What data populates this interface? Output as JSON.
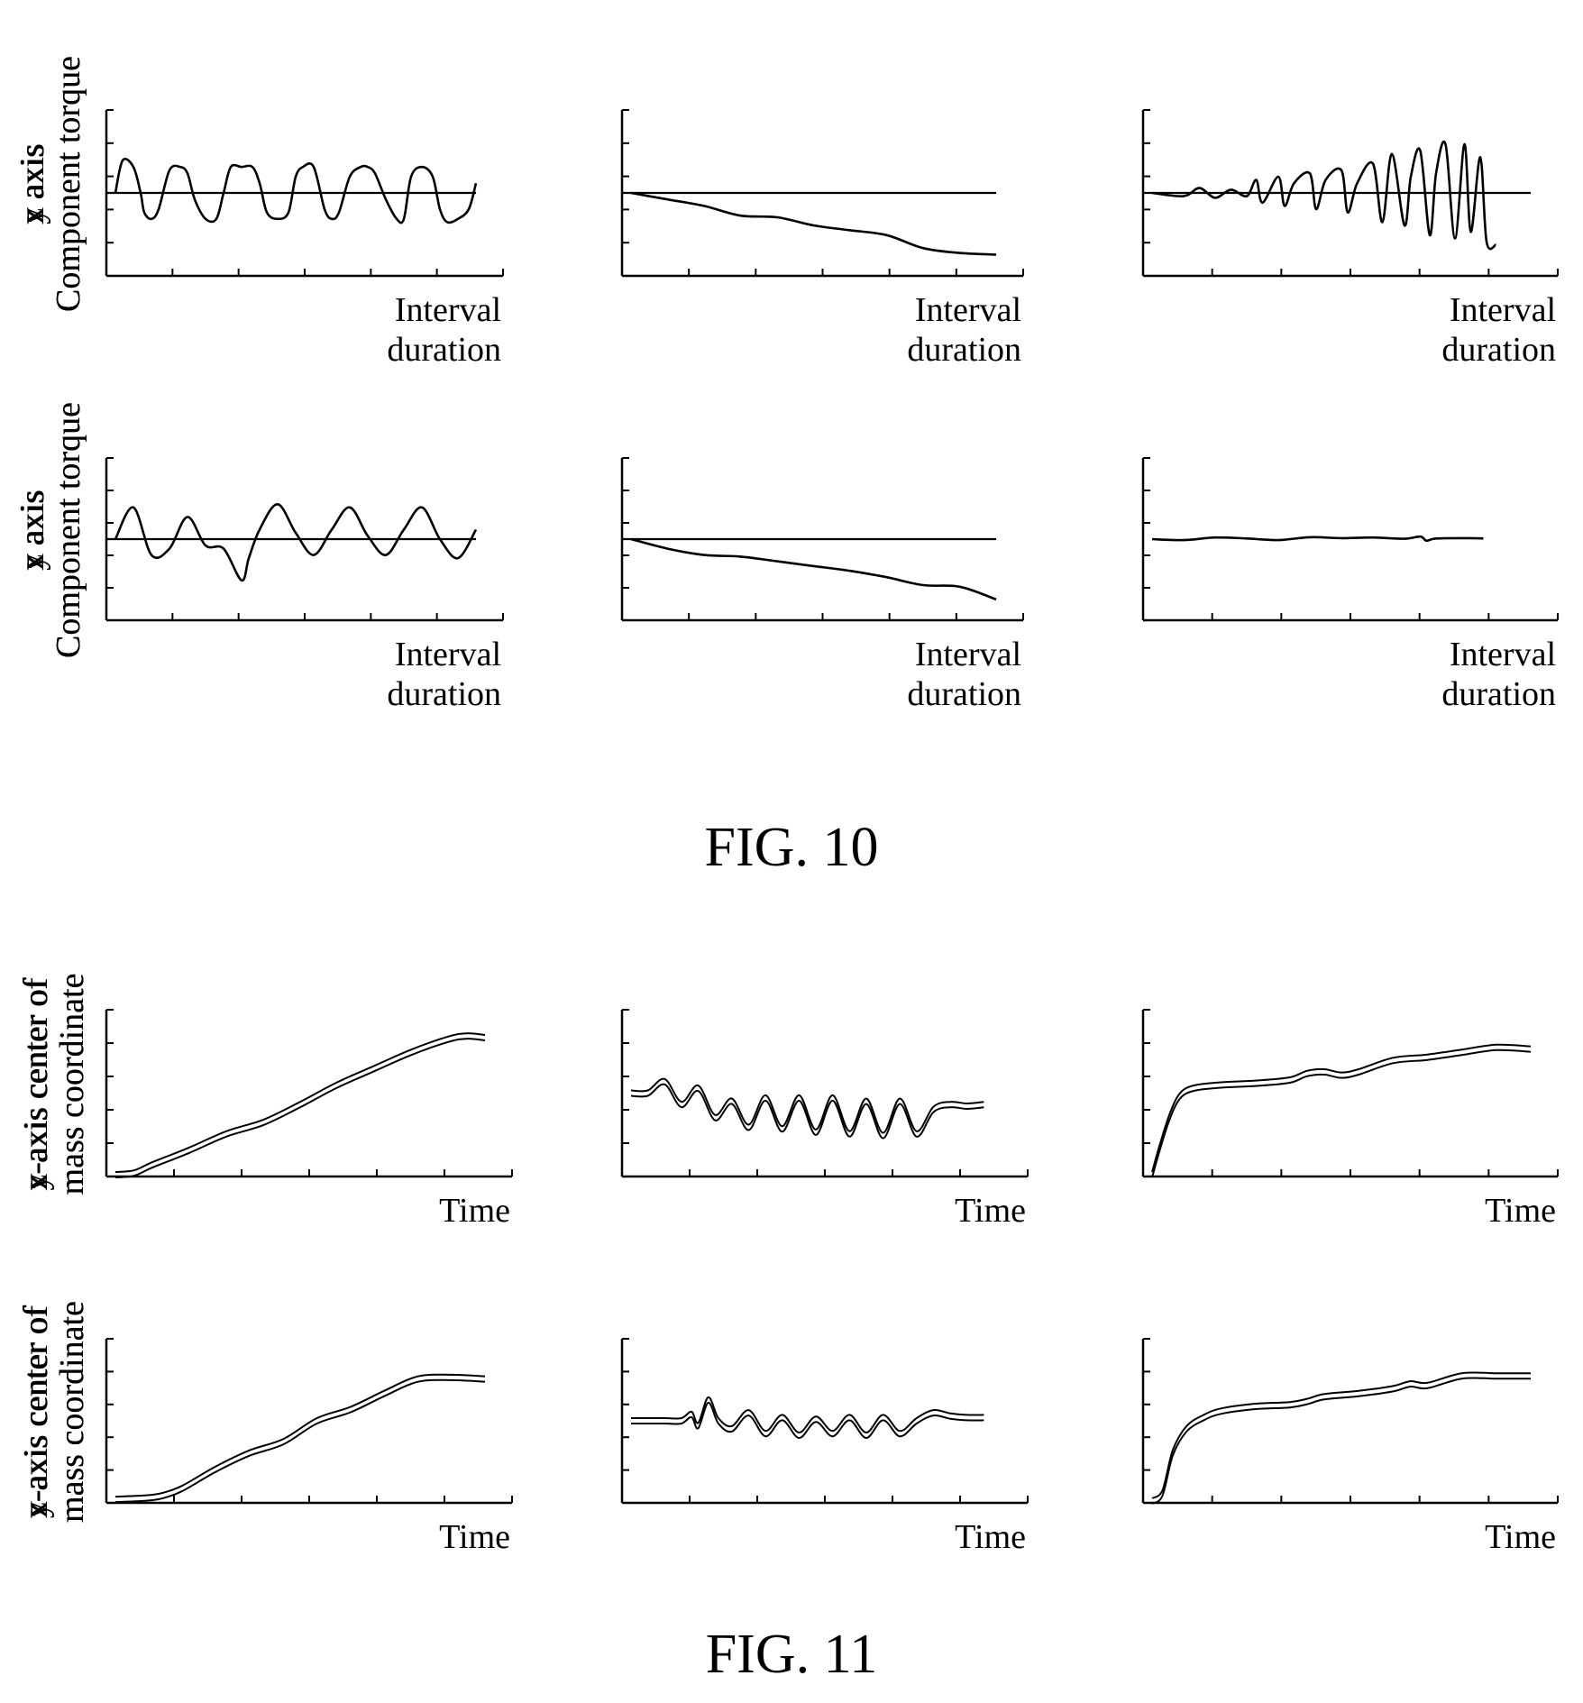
{
  "figures": [
    {
      "caption": "FIG. 10"
    },
    {
      "caption": "FIG. 11"
    }
  ],
  "chart_data": [
    {
      "type": "line",
      "figure": 0,
      "ylabel_lines": [
        "x axis",
        "Component torque"
      ],
      "xlabel_lines": [
        "Interval",
        "duration"
      ],
      "reference_line": 0,
      "xlim": [
        0,
        10
      ],
      "ylim": [
        -2.5,
        2.5
      ],
      "series": [
        {
          "x": [
            0,
            0.2,
            0.5,
            0.7,
            0.8,
            1.0,
            1.2,
            1.5,
            1.8,
            2.0,
            2.2,
            2.5,
            2.8,
            3.0,
            3.2,
            3.5,
            3.8,
            4.0,
            4.2,
            4.5,
            4.8,
            5.0,
            5.2,
            5.5,
            5.8,
            6.0,
            6.2,
            6.5,
            6.8,
            7.0,
            7.2,
            7.5,
            7.8,
            8.0,
            8.2,
            8.5,
            8.8,
            9.0,
            9.2,
            9.5,
            9.8,
            10.0
          ],
          "y": [
            0,
            1.0,
            0.8,
            0,
            -0.6,
            -0.8,
            -0.5,
            0.7,
            0.8,
            0.6,
            -0.2,
            -0.8,
            -0.8,
            0,
            0.8,
            0.8,
            0.8,
            0.3,
            -0.6,
            -0.8,
            -0.6,
            0.5,
            0.8,
            0.8,
            -0.5,
            -0.8,
            -0.6,
            0.5,
            0.8,
            0.8,
            0.6,
            -0.2,
            -0.8,
            -0.8,
            0.5,
            0.8,
            0.5,
            -0.5,
            -0.9,
            -0.8,
            -0.5,
            0.3
          ]
        }
      ]
    },
    {
      "type": "line",
      "figure": 0,
      "ylabel_lines": [
        "y axis",
        "Component torque"
      ],
      "xlabel_lines": [
        "Interval",
        "duration"
      ],
      "reference_line": 0,
      "xlim": [
        0,
        10
      ],
      "ylim": [
        -2.5,
        2.5
      ],
      "series": [
        {
          "x": [
            0,
            1,
            2,
            3,
            4,
            5,
            6,
            7,
            8,
            9,
            10
          ],
          "y": [
            0,
            -0.2,
            -0.4,
            -0.7,
            -0.75,
            -1.0,
            -1.15,
            -1.3,
            -1.7,
            -1.85,
            -1.9
          ]
        }
      ]
    },
    {
      "type": "line",
      "figure": 0,
      "ylabel_lines": [
        "z axis",
        "Component torque"
      ],
      "xlabel_lines": [
        "Interval",
        "duration"
      ],
      "reference_line": 0,
      "xlim": [
        0,
        12
      ],
      "ylim": [
        -2.5,
        2.5
      ],
      "series": [
        {
          "x": [
            0,
            1,
            1.5,
            2,
            2.5,
            3,
            3.3,
            3.5,
            4,
            4.2,
            4.5,
            5,
            5.2,
            5.5,
            6,
            6.2,
            6.5,
            7,
            7.3,
            7.6,
            8,
            8.2,
            8.5,
            8.8,
            9,
            9.3,
            9.6,
            9.9,
            10.1,
            10.4,
            10.6,
            10.9
          ],
          "y": [
            0,
            -0.1,
            0.15,
            -0.15,
            0.1,
            -0.1,
            0.4,
            -0.3,
            0.5,
            -0.4,
            0.3,
            0.6,
            -0.5,
            0.4,
            0.7,
            -0.6,
            0.3,
            0.9,
            -0.9,
            1.2,
            -1.0,
            0.5,
            1.3,
            -1.3,
            0.6,
            1.5,
            -1.4,
            1.5,
            -1.2,
            1.1,
            -1.5,
            -1.6
          ]
        }
      ]
    },
    {
      "type": "line",
      "figure": 0,
      "ylabel_lines": [
        "x axis",
        "Component torque"
      ],
      "xlabel_lines": [
        "Interval",
        "duration"
      ],
      "reference_line": 0,
      "xlim": [
        0,
        10
      ],
      "ylim": [
        -2.5,
        2.5
      ],
      "series": [
        {
          "x": [
            0,
            0.5,
            1.0,
            1.5,
            2.0,
            2.5,
            3.0,
            3.5,
            3.7,
            4.0,
            4.5,
            5.0,
            5.5,
            6.0,
            6.5,
            7.0,
            7.5,
            8.0,
            8.5,
            9.0,
            9.5,
            10.0
          ],
          "y": [
            0,
            1.0,
            -0.5,
            -0.3,
            0.7,
            -0.2,
            -0.3,
            -1.3,
            -0.6,
            0.3,
            1.1,
            0.2,
            -0.5,
            0.3,
            1.0,
            0.1,
            -0.5,
            0.3,
            1.0,
            0,
            -0.6,
            0.3
          ]
        }
      ]
    },
    {
      "type": "line",
      "figure": 0,
      "ylabel_lines": [
        "y axis",
        "Component torque"
      ],
      "xlabel_lines": [
        "Interval",
        "duration"
      ],
      "reference_line": 0,
      "xlim": [
        0,
        10
      ],
      "ylim": [
        -2.5,
        2.5
      ],
      "series": [
        {
          "x": [
            0,
            1,
            2,
            3,
            4,
            5,
            6,
            7,
            8,
            9,
            10
          ],
          "y": [
            0,
            -0.3,
            -0.5,
            -0.55,
            -0.7,
            -0.85,
            -1.0,
            -1.2,
            -1.45,
            -1.5,
            -1.9
          ]
        }
      ]
    },
    {
      "type": "line",
      "figure": 0,
      "ylabel_lines": [
        "z axis",
        "Component torque"
      ],
      "xlabel_lines": [
        "Interval",
        "duration"
      ],
      "reference_line": null,
      "xlim": [
        0,
        12
      ],
      "ylim": [
        -2.5,
        2.5
      ],
      "series": [
        {
          "x": [
            0,
            1,
            2,
            3,
            4,
            5,
            6,
            7,
            8,
            8.5,
            8.7,
            9,
            10,
            10.5
          ],
          "y": [
            0,
            -0.03,
            0.05,
            0.02,
            -0.03,
            0.06,
            0.03,
            0.05,
            0.01,
            0.08,
            -0.05,
            0.02,
            0.03,
            0.02
          ]
        }
      ]
    },
    {
      "type": "line",
      "figure": 1,
      "ylabel_lines": [
        "x-axis center of",
        "mass coordinate"
      ],
      "xlabel_lines": [
        "Time"
      ],
      "xlim": [
        0,
        10
      ],
      "ylim": [
        0,
        10
      ],
      "series": [
        {
          "x": [
            0,
            0.5,
            1,
            2,
            3,
            4,
            5,
            6,
            7,
            8,
            9,
            9.5,
            10
          ],
          "y": [
            0,
            0.1,
            0.6,
            1.5,
            2.5,
            3.2,
            4.3,
            5.5,
            6.5,
            7.5,
            8.3,
            8.5,
            8.4
          ]
        }
      ]
    },
    {
      "type": "line",
      "figure": 1,
      "ylabel_lines": [
        "y-axis center of",
        "mass coordinate"
      ],
      "xlabel_lines": [
        "Time"
      ],
      "xlim": [
        0,
        11
      ],
      "ylim": [
        0,
        10
      ],
      "series": [
        {
          "x": [
            0,
            0.5,
            1,
            1.5,
            2,
            2.5,
            3,
            3.5,
            4,
            4.5,
            5,
            5.5,
            6,
            6.5,
            7,
            7.5,
            8,
            8.5,
            9,
            9.5,
            10,
            10.5
          ],
          "y": [
            5,
            5,
            5.7,
            4.3,
            5.3,
            3.5,
            4.5,
            2.9,
            4.7,
            2.8,
            4.7,
            2.6,
            4.7,
            2.5,
            4.5,
            2.4,
            4.5,
            2.5,
            4.0,
            4.3,
            4.2,
            4.3
          ]
        }
      ]
    },
    {
      "type": "line",
      "figure": 1,
      "ylabel_lines": [
        "z-axis center of",
        "mass coordinate"
      ],
      "xlabel_lines": [
        "Time"
      ],
      "xlim": [
        0,
        11
      ],
      "ylim": [
        0,
        10
      ],
      "series": [
        {
          "x": [
            0,
            0.2,
            0.5,
            0.8,
            1.2,
            2,
            3,
            4,
            4.5,
            5,
            5.5,
            6,
            7,
            8,
            9,
            10,
            11
          ],
          "y": [
            0,
            1.5,
            3.5,
            4.8,
            5.3,
            5.5,
            5.6,
            5.8,
            6.2,
            6.3,
            6.1,
            6.3,
            7.0,
            7.2,
            7.5,
            7.8,
            7.7
          ]
        }
      ]
    },
    {
      "type": "line",
      "figure": 1,
      "ylabel_lines": [
        "x-axis center of",
        "mass coordinate"
      ],
      "xlabel_lines": [
        "Time"
      ],
      "xlim": [
        0,
        11
      ],
      "ylim": [
        0,
        10
      ],
      "series": [
        {
          "x": [
            0,
            1,
            1.5,
            2,
            3,
            4,
            5,
            6,
            7,
            8,
            9,
            10,
            11
          ],
          "y": [
            0.1,
            0.2,
            0.4,
            0.8,
            2,
            3,
            3.7,
            5,
            5.7,
            6.7,
            7.6,
            7.7,
            7.6
          ]
        }
      ]
    },
    {
      "type": "line",
      "figure": 1,
      "ylabel_lines": [
        "y-axis center of",
        "mass coordinate"
      ],
      "xlabel_lines": [
        "Time"
      ],
      "xlim": [
        0,
        11
      ],
      "ylim": [
        0,
        10
      ],
      "series": [
        {
          "x": [
            0,
            1,
            1.5,
            1.8,
            2,
            2.3,
            2.6,
            3,
            3.5,
            4,
            4.5,
            5,
            5.5,
            6,
            6.5,
            7,
            7.5,
            8,
            8.5,
            9,
            9.5,
            10,
            10.5
          ],
          "y": [
            5,
            5,
            5,
            5.4,
            4.7,
            6.3,
            5,
            4.5,
            5.5,
            4.2,
            5.2,
            4.1,
            5.1,
            4.2,
            5.2,
            4.1,
            5.2,
            4.2,
            5.0,
            5.5,
            5.3,
            5.2,
            5.2
          ]
        }
      ]
    },
    {
      "type": "line",
      "figure": 1,
      "ylabel_lines": [
        "z-axis center of",
        "mass coordinate"
      ],
      "xlabel_lines": [
        "Time"
      ],
      "xlim": [
        0,
        11
      ],
      "ylim": [
        0,
        10
      ],
      "series": [
        {
          "x": [
            0,
            0.3,
            0.6,
            1,
            1.5,
            2,
            3,
            4,
            4.5,
            5,
            6,
            7,
            7.5,
            8,
            9,
            10,
            11
          ],
          "y": [
            0,
            0.5,
            3,
            4.5,
            5.2,
            5.6,
            5.9,
            6,
            6.2,
            6.5,
            6.7,
            7.0,
            7.3,
            7.2,
            7.8,
            7.8,
            7.8
          ]
        }
      ]
    }
  ]
}
